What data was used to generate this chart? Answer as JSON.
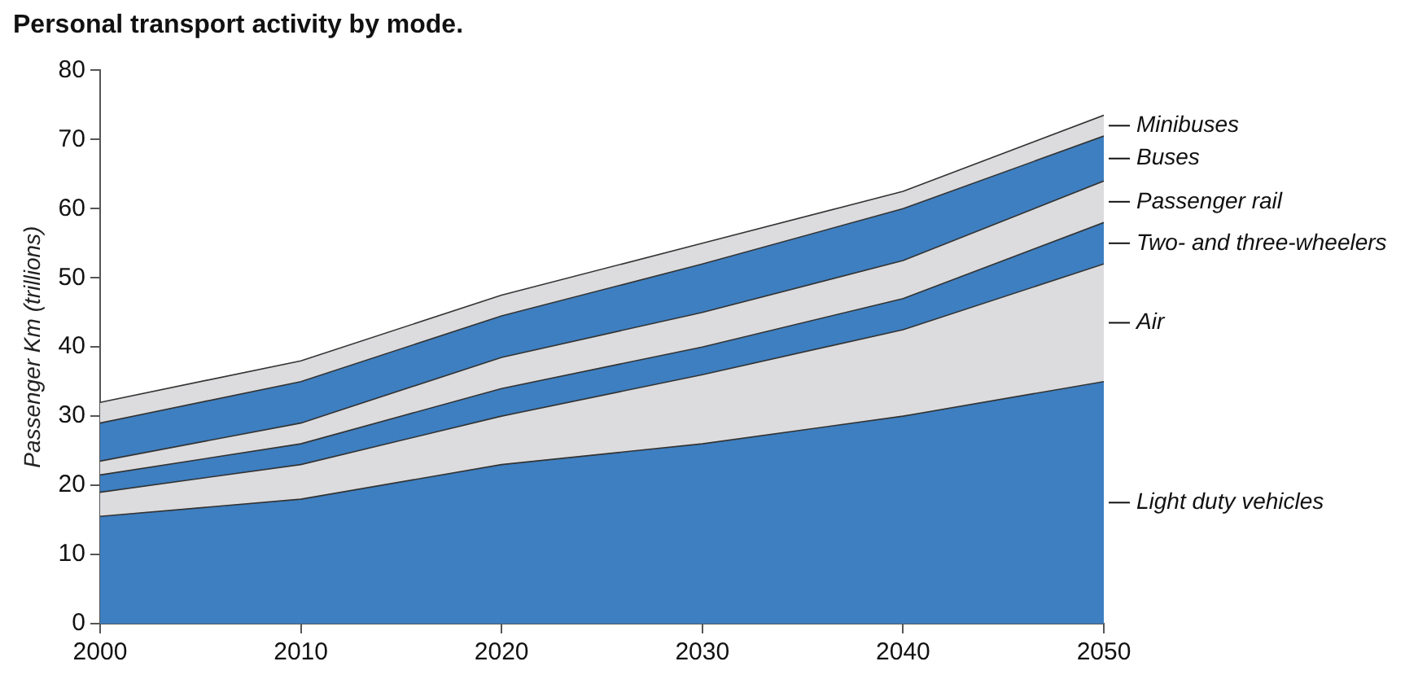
{
  "chart_data": {
    "type": "area",
    "title": "Personal transport activity by mode.",
    "ylabel": "Passenger Km (trillions)",
    "x": [
      2000,
      2010,
      2020,
      2030,
      2040,
      2050
    ],
    "xlim": [
      2000,
      2050
    ],
    "xticks": [
      2000,
      2010,
      2020,
      2030,
      2040,
      2050
    ],
    "ylim": [
      0,
      80
    ],
    "yticks": [
      0,
      10,
      20,
      30,
      40,
      50,
      60,
      70,
      80
    ],
    "stacked": true,
    "grid": false,
    "legend": false,
    "series": [
      {
        "name": "Light duty vehicles",
        "color": "#3d7fc1",
        "values": [
          15.5,
          18,
          23,
          26,
          30,
          35
        ]
      },
      {
        "name": "Air",
        "color": "#dcdcde",
        "values": [
          3.5,
          5,
          7,
          10,
          12.5,
          17
        ]
      },
      {
        "name": "Two- and three-wheelers",
        "color": "#3d7fc1",
        "values": [
          2.5,
          3,
          4,
          4,
          4.5,
          6
        ]
      },
      {
        "name": "Passenger rail",
        "color": "#dcdcde",
        "values": [
          2,
          3,
          4.5,
          5,
          5.5,
          6
        ]
      },
      {
        "name": "Buses",
        "color": "#3d7fc1",
        "values": [
          5.5,
          6,
          6,
          7,
          7.5,
          6.5
        ]
      },
      {
        "name": "Minibuses",
        "color": "#dcdcde",
        "values": [
          3,
          3,
          3,
          3,
          2.5,
          3
        ]
      }
    ]
  }
}
